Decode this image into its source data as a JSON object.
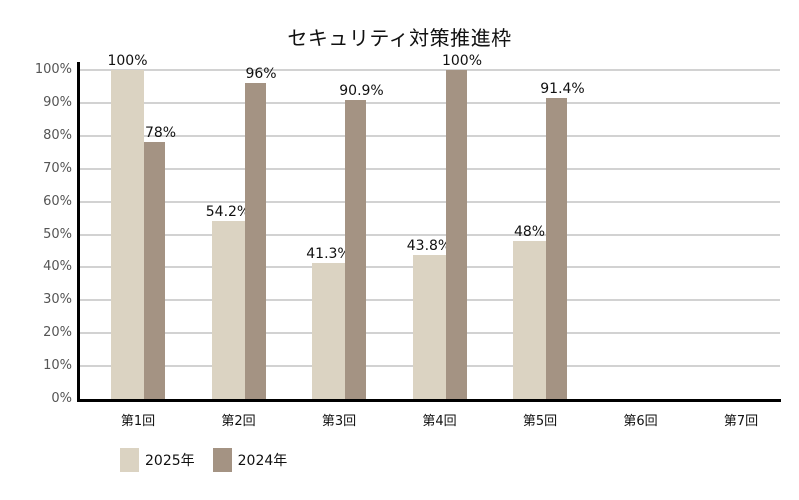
{
  "chart_data": {
    "type": "bar",
    "title": "セキュリティ対策推進枠",
    "xlabel": "",
    "ylabel": "",
    "ylim": [
      0,
      100
    ],
    "yticks": [
      "0%",
      "10%",
      "20%",
      "30%",
      "40%",
      "50%",
      "60%",
      "70%",
      "80%",
      "90%",
      "100%"
    ],
    "grid": true,
    "legend_position": "bottom-left",
    "categories": [
      "第1回",
      "第2回",
      "第3回",
      "第4回",
      "第5回",
      "第6回",
      "第7回"
    ],
    "series": [
      {
        "name": "2025年",
        "color": "#dbd3c2",
        "values": [
          100,
          54.2,
          41.3,
          43.8,
          48,
          null,
          null
        ],
        "labels": [
          "100%",
          "54.2%",
          "41.3%",
          "43.8%",
          "48%",
          "",
          ""
        ]
      },
      {
        "name": "2024年",
        "color": "#a49383",
        "values": [
          78,
          96,
          90.9,
          100,
          91.4,
          null,
          null
        ],
        "labels": [
          "78%",
          "96%",
          "90.9%",
          "100%",
          "91.4%",
          "",
          ""
        ]
      }
    ]
  },
  "legend": {
    "items": [
      {
        "label": "2025年",
        "color": "#dbd3c2"
      },
      {
        "label": "2024年",
        "color": "#a49383"
      }
    ]
  }
}
